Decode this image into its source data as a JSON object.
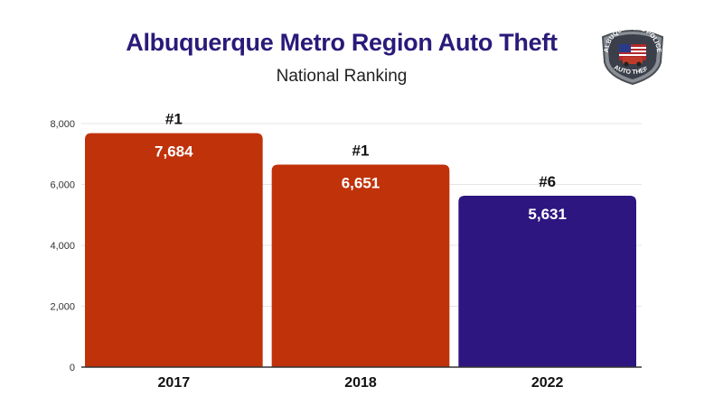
{
  "chart_data": {
    "type": "bar",
    "title": "Albuquerque Metro Region Auto Theft",
    "subtitle": "National Ranking",
    "categories": [
      "2017",
      "2018",
      "2022"
    ],
    "values": [
      7684,
      6651,
      5631
    ],
    "value_labels": [
      "7,684",
      "6,651",
      "5,631"
    ],
    "rank_labels": [
      "#1",
      "#1",
      "#6"
    ],
    "bar_colors": [
      "#c0320a",
      "#c0320a",
      "#2d1680"
    ],
    "ylim": [
      0,
      8000
    ],
    "yticks": [
      0,
      2000,
      4000,
      6000,
      8000
    ],
    "ytick_labels": [
      "0",
      "2,000",
      "4,000",
      "6,000",
      "8,000"
    ],
    "xlabel": "",
    "ylabel": "",
    "grid": true
  },
  "badge": {
    "text_top": "ALBUQUERQUE POLICE",
    "text_bottom": "AUTO THEFT"
  },
  "colors": {
    "title": "#2a1a7a",
    "grid": "#e6e6e6",
    "axis": "#333333"
  }
}
